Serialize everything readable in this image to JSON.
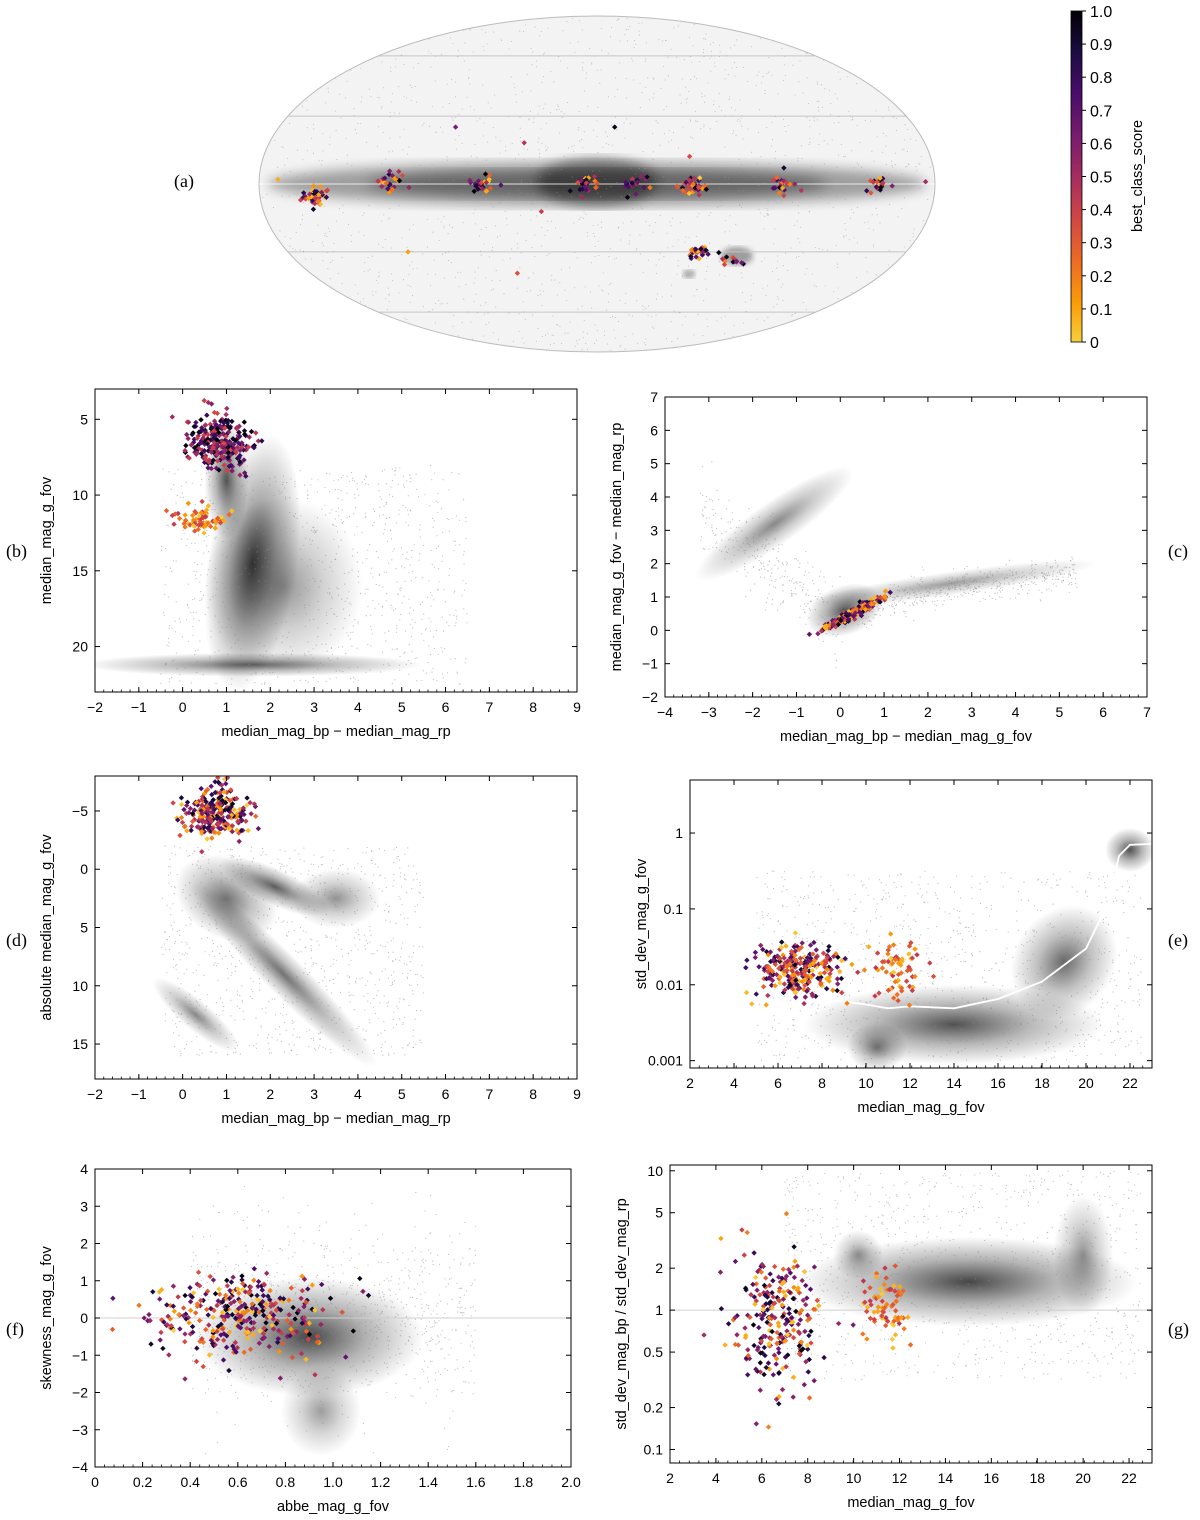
{
  "panel_labels": [
    "(a)",
    "(b)",
    "(c)",
    "(d)",
    "(e)",
    "(f)",
    "(g)"
  ],
  "colors": {
    "bg_dots": "#9a9a9a",
    "ref_line": "#ffffff",
    "axis": "#000000"
  },
  "colorbar": {
    "label": "best_class_score",
    "ticks": [
      "0",
      "0.1",
      "0.2",
      "0.3",
      "0.4",
      "0.5",
      "0.6",
      "0.7",
      "0.8",
      "0.9",
      "1.0"
    ],
    "colormap": "inferno_r",
    "stops": [
      "#f7d03c",
      "#fb9b06",
      "#ed6925",
      "#cf4446",
      "#a52c60",
      "#781c6d",
      "#4a0c6b",
      "#1b0c41",
      "#000004"
    ]
  },
  "chart_data": [
    {
      "id": "a",
      "type": "scatter",
      "projection": "mollweide-sky",
      "title": "",
      "xlabel": "",
      "ylabel": "",
      "clusters": [
        {
          "lon": 150,
          "lat": -5,
          "n": 40
        },
        {
          "lon": 110,
          "lat": 1,
          "n": 25
        },
        {
          "lon": 60,
          "lat": 0,
          "n": 25
        },
        {
          "lon": 5,
          "lat": 0,
          "n": 22
        },
        {
          "lon": -20,
          "lat": 0,
          "n": 20
        },
        {
          "lon": -50,
          "lat": -1,
          "n": 35
        },
        {
          "lon": -100,
          "lat": 0,
          "n": 20
        },
        {
          "lon": -150,
          "lat": 0,
          "n": 20
        },
        {
          "lon": -60,
          "lat": -30,
          "n": 30
        },
        {
          "lon": -80,
          "lat": -34,
          "n": 12
        }
      ],
      "isolated": [
        [
          40,
          18
        ],
        [
          80,
          25
        ],
        [
          -100,
          7
        ],
        [
          -50,
          12
        ],
        [
          30,
          -12
        ],
        [
          110,
          -30
        ],
        [
          -10,
          25
        ],
        [
          50,
          -40
        ],
        [
          170,
          2
        ],
        [
          -175,
          1
        ]
      ]
    },
    {
      "id": "b",
      "type": "scatter",
      "xlabel": "median_mag_bp − median_mag_rp",
      "ylabel": "median_mag_g_fov",
      "xlim": [
        -2,
        9
      ],
      "ylim": [
        23,
        3
      ],
      "y_inverted": true,
      "x_ticks": [
        -2,
        -1,
        0,
        1,
        2,
        3,
        4,
        5,
        6,
        7,
        8,
        9
      ],
      "y_ticks": [
        5,
        10,
        15,
        20
      ],
      "clusters": [
        {
          "x": 0.8,
          "y": 6.5,
          "sx": 0.35,
          "sy": 0.9,
          "n": 260,
          "score": "high"
        },
        {
          "x": 0.4,
          "y": 11.6,
          "sx": 0.3,
          "sy": 0.5,
          "n": 70,
          "score": "low"
        }
      ]
    },
    {
      "id": "c",
      "type": "scatter",
      "xlabel": "median_mag_bp − median_mag_g_fov",
      "ylabel": "median_mag_g_fov − median_mag_rp",
      "xlim": [
        -4,
        7
      ],
      "ylim": [
        -2,
        7
      ],
      "x_ticks": [
        -4,
        -3,
        -2,
        -1,
        0,
        1,
        2,
        3,
        4,
        5,
        6,
        7
      ],
      "y_ticks": [
        -2,
        -1,
        0,
        1,
        2,
        3,
        4,
        5,
        6,
        7
      ],
      "clusters": [
        {
          "x": 0.3,
          "y": 0.35,
          "sx": 0.35,
          "sy": 0.3,
          "n": 200,
          "score": "mixed",
          "along": "locus"
        }
      ]
    },
    {
      "id": "d",
      "type": "scatter",
      "xlabel": "median_mag_bp − median_mag_rp",
      "ylabel": "absolute median_mag_g_fov",
      "xlim": [
        -2,
        9
      ],
      "ylim": [
        18,
        -8
      ],
      "y_inverted": true,
      "x_ticks": [
        -2,
        -1,
        0,
        1,
        2,
        3,
        4,
        5,
        6,
        7,
        8,
        9
      ],
      "y_ticks": [
        -5,
        0,
        5,
        10,
        15
      ],
      "clusters": [
        {
          "x": 0.75,
          "y": -4.8,
          "sx": 0.35,
          "sy": 1.1,
          "n": 260,
          "score": "mixed"
        }
      ]
    },
    {
      "id": "e",
      "type": "scatter",
      "y_scale": "log",
      "xlabel": "median_mag_g_fov",
      "ylabel": "std_dev_mag_g_fov",
      "xlim": [
        2,
        23
      ],
      "ylim": [
        0.0008,
        5
      ],
      "x_ticks": [
        2,
        4,
        6,
        8,
        10,
        12,
        14,
        16,
        18,
        20,
        22
      ],
      "y_ticks": [
        "1",
        "0.1",
        "0.01",
        "0.001"
      ],
      "clusters": [
        {
          "x": 6.8,
          "y": 0.016,
          "sx": 1.0,
          "sy": 0.18,
          "n": 250,
          "score": "mixed"
        },
        {
          "x": 11.4,
          "y": 0.016,
          "sx": 0.6,
          "sy": 0.2,
          "n": 70,
          "score": "low"
        }
      ],
      "median_curve": [
        [
          6,
          0.0068
        ],
        [
          8,
          0.0066
        ],
        [
          10,
          0.0055
        ],
        [
          11,
          0.0049
        ],
        [
          12,
          0.0052
        ],
        [
          14,
          0.0049
        ],
        [
          16,
          0.0065
        ],
        [
          18,
          0.011
        ],
        [
          20,
          0.03
        ],
        [
          21,
          0.12
        ],
        [
          21.5,
          0.5
        ],
        [
          22,
          0.7
        ],
        [
          23,
          0.72
        ]
      ]
    },
    {
      "id": "f",
      "type": "scatter",
      "xlabel": "abbe_mag_g_fov",
      "ylabel": "skewness_mag_g_fov",
      "xlim": [
        0,
        2
      ],
      "ylim": [
        -4,
        4
      ],
      "x_ticks": [
        "0",
        "0.2",
        "0.4",
        "0.6",
        "0.8",
        "1.0",
        "1.2",
        "1.4",
        "1.6",
        "1.8",
        "2.0"
      ],
      "y_ticks": [
        -4,
        -3,
        -2,
        -1,
        0,
        1,
        2,
        3,
        4
      ],
      "clusters": [
        {
          "x": 0.62,
          "y": 0.05,
          "sx": 0.18,
          "sy": 0.55,
          "n": 330,
          "score": "mixed"
        }
      ],
      "ref_line_y": 0
    },
    {
      "id": "g",
      "type": "scatter",
      "y_scale": "log",
      "xlabel": "median_mag_g_fov",
      "ylabel": "std_dev_mag_bp / std_dev_mag_rp",
      "xlim": [
        2,
        23
      ],
      "ylim": [
        0.08,
        11
      ],
      "x_ticks": [
        2,
        4,
        6,
        8,
        10,
        12,
        14,
        16,
        18,
        20,
        22
      ],
      "y_ticks": [
        "0.1",
        "0.2",
        "0.5",
        "1",
        "2",
        "5",
        "10"
      ],
      "clusters": [
        {
          "x": 6.8,
          "y": 0.85,
          "sx": 1.0,
          "sy": 0.25,
          "n": 250,
          "score": "mixed"
        },
        {
          "x": 11.4,
          "y": 1.1,
          "sx": 0.55,
          "sy": 0.12,
          "n": 70,
          "score": "low"
        }
      ],
      "ref_line_y": 1
    }
  ]
}
